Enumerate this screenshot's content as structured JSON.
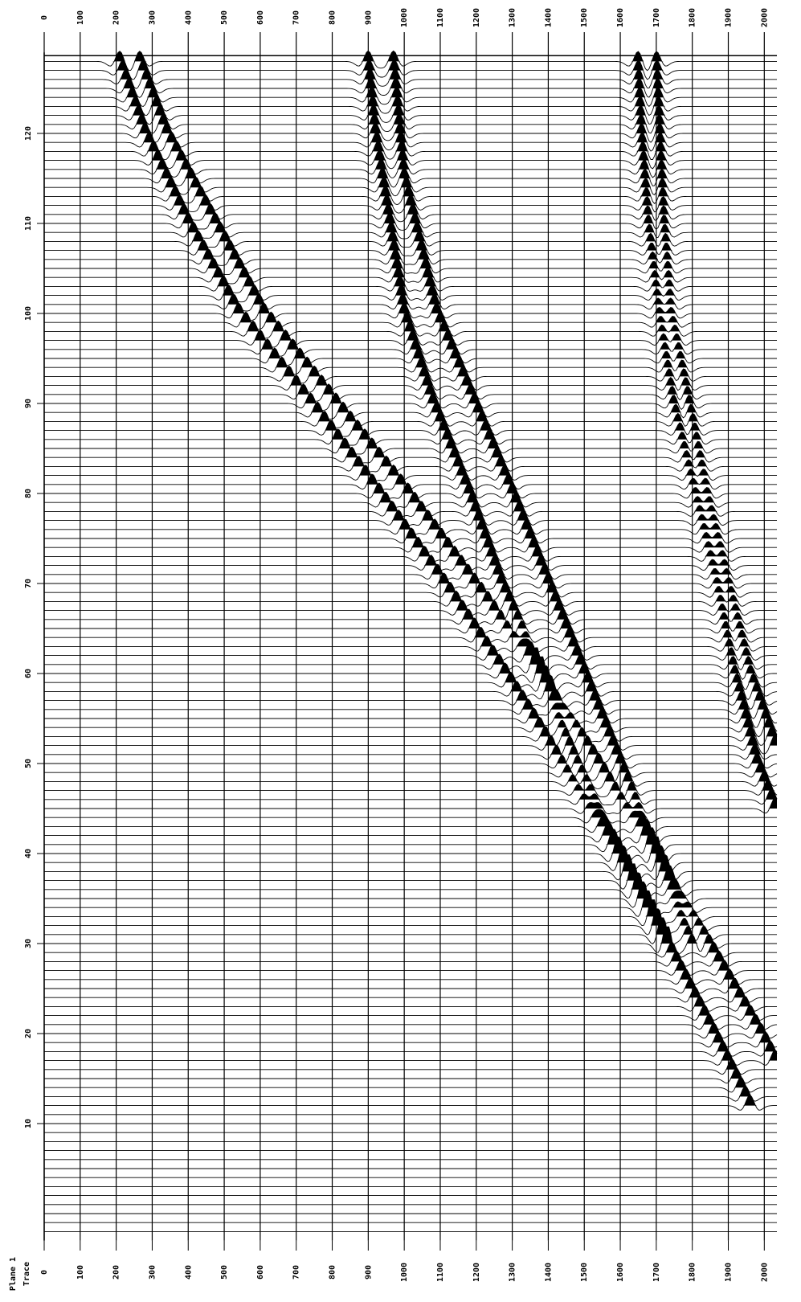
{
  "chart_data": {
    "type": "wiggle",
    "plane_label": "Plane 1",
    "y_label": "Trace",
    "xlim": [
      0,
      2035
    ],
    "xticks": [
      0,
      100,
      200,
      300,
      400,
      500,
      600,
      700,
      800,
      900,
      1000,
      1100,
      1200,
      1300,
      1400,
      1500,
      1600,
      1700,
      1800,
      1900,
      2000
    ],
    "ylim": [
      -3,
      129
    ],
    "yticks": [
      10,
      20,
      30,
      40,
      50,
      60,
      70,
      80,
      90,
      100,
      110,
      120
    ],
    "grid": true,
    "color": "#000000",
    "events": [
      {
        "x": [
          210,
          280,
          400,
          540,
          740,
          930,
          1110,
          1280,
          1440,
          1590,
          1730,
          1860,
          1960
        ],
        "y": [
          128,
          120,
          110,
          100,
          90,
          80,
          70,
          60,
          50,
          40,
          30,
          20,
          12
        ]
      },
      {
        "x": [
          265,
          340,
          610,
          1010,
          1380,
          1700,
          1990,
          2030
        ],
        "y": [
          128,
          120,
          100,
          80,
          60,
          40,
          20,
          17
        ]
      },
      {
        "x": [
          900,
          920,
          960,
          1000,
          1080,
          1180,
          1270,
          1380,
          1480,
          1600,
          1730
        ],
        "y": [
          128,
          120,
          110,
          100,
          90,
          80,
          70,
          60,
          50,
          40,
          30
        ]
      },
      {
        "x": [
          970,
          1000,
          1090,
          1300,
          1500,
          1700,
          1800
        ],
        "y": [
          128,
          115,
          100,
          80,
          60,
          40,
          30
        ]
      },
      {
        "x": [
          1650,
          1660,
          1680,
          1710,
          1750,
          1810,
          1870,
          1920,
          1980,
          2030
        ],
        "y": [
          128,
          120,
          110,
          100,
          90,
          80,
          70,
          60,
          50,
          45
        ]
      },
      {
        "x": [
          1700,
          1720,
          1740,
          1790,
          1840,
          1900,
          1960,
          2030
        ],
        "y": [
          128,
          110,
          100,
          90,
          80,
          70,
          60,
          52
        ]
      }
    ]
  }
}
